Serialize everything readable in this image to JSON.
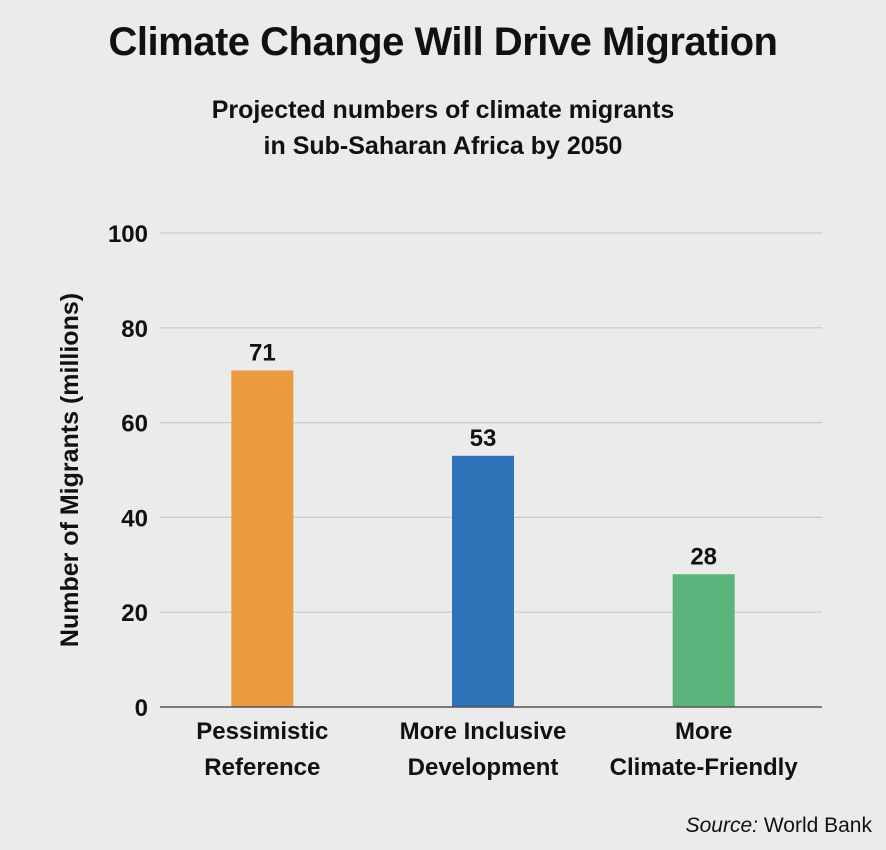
{
  "chart_data": {
    "type": "bar",
    "title": "Climate Change Will Drive Migration",
    "subtitle_lines": [
      "Projected numbers of climate migrants",
      "in Sub-Saharan Africa by 2050"
    ],
    "ylabel": "Number of Migrants (millions)",
    "xlabel": "",
    "categories": [
      [
        "Pessimistic",
        "Reference"
      ],
      [
        "More Inclusive",
        "Development"
      ],
      [
        "More",
        "Climate-Friendly"
      ]
    ],
    "values": [
      71,
      53,
      28
    ],
    "data_labels": [
      "71",
      "53",
      "28"
    ],
    "colors": [
      "#ec9a40",
      "#2f72b8",
      "#5ab37a"
    ],
    "ylim": [
      0,
      100
    ],
    "yticks": [
      0,
      20,
      40,
      60,
      80,
      100
    ],
    "ytick_labels": [
      "0",
      "20",
      "40",
      "60",
      "80",
      "100"
    ],
    "grid": true,
    "legend": "none"
  },
  "source": {
    "label": "Source:",
    "text": "World Bank"
  }
}
